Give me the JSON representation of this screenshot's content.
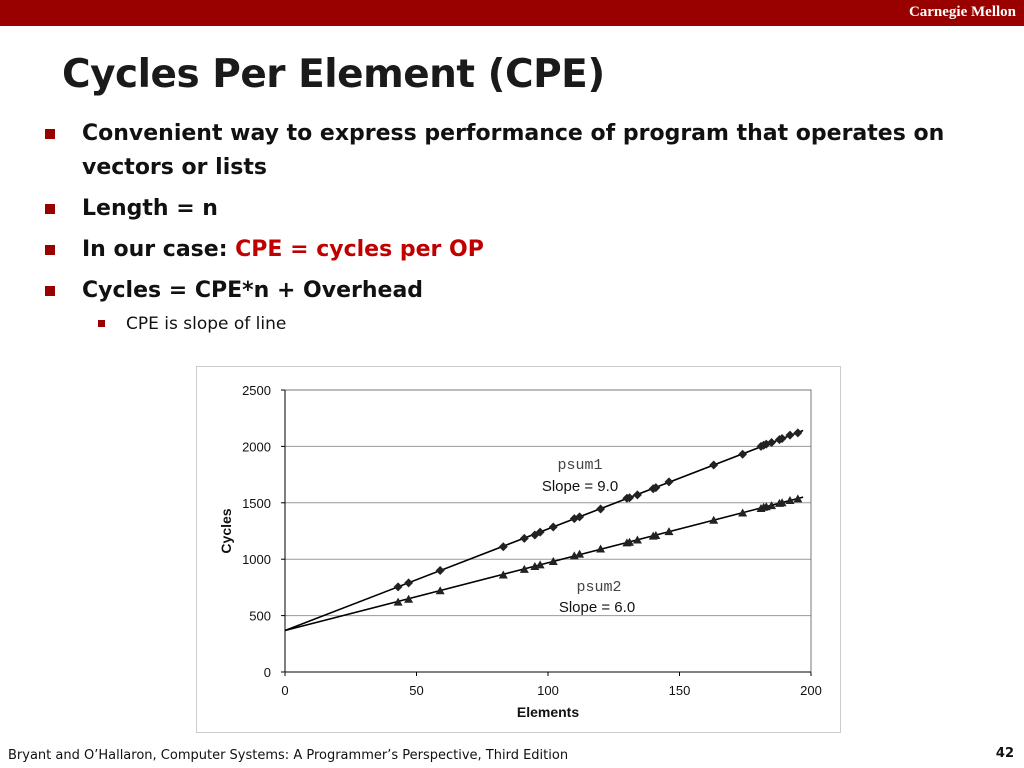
{
  "header": {
    "brand": "Carnegie Mellon"
  },
  "slide": {
    "title": "Cycles Per Element (CPE)",
    "bullets": [
      {
        "text": "Convenient way to express performance of program that operates on"
      },
      {
        "text": "vectors or lists"
      },
      {
        "text": "Length = n"
      },
      {
        "prefix": "In our case: ",
        "highlight": "CPE = cycles per OP"
      },
      {
        "text": "Cycles = CPE*n + Overhead"
      }
    ],
    "sub_bullet": "CPE is slope of line"
  },
  "footer": {
    "citation": "Bryant and O’Hallaron, Computer Systems: A Programmer’s Perspective, Third Edition",
    "page": "42"
  },
  "colors": {
    "accent": "#990000",
    "highlight": "#c00000",
    "series": "#222222"
  },
  "chart_data": {
    "type": "scatter",
    "xlabel": "Elements",
    "ylabel": "Cycles",
    "xlim": [
      0,
      200
    ],
    "ylim": [
      0,
      2500
    ],
    "xticks": [
      0,
      50,
      100,
      150,
      200
    ],
    "yticks": [
      0,
      500,
      1000,
      1500,
      2000,
      2500
    ],
    "grid": "horizontal",
    "series": [
      {
        "name": "psum1",
        "annotation": "Slope = 9.0",
        "marker": "diamond",
        "fit": {
          "slope": 9.0,
          "intercept": 368
        },
        "x": [
          43,
          47,
          59,
          83,
          91,
          95,
          97,
          102,
          110,
          112,
          120,
          130,
          131,
          134,
          140,
          141,
          146,
          163,
          174,
          181,
          182,
          183,
          185,
          188,
          189,
          192,
          195
        ],
        "y": [
          755,
          790,
          900,
          1110,
          1185,
          1215,
          1240,
          1285,
          1360,
          1375,
          1445,
          1540,
          1545,
          1570,
          1625,
          1635,
          1685,
          1835,
          1930,
          2000,
          2010,
          2020,
          2035,
          2060,
          2070,
          2100,
          2120
        ]
      },
      {
        "name": "psum2",
        "annotation": "Slope = 6.0",
        "marker": "triangle",
        "fit": {
          "slope": 6.0,
          "intercept": 368
        },
        "x": [
          43,
          47,
          59,
          83,
          91,
          95,
          97,
          102,
          110,
          112,
          120,
          130,
          131,
          134,
          140,
          141,
          146,
          163,
          174,
          181,
          182,
          183,
          185,
          188,
          189,
          192,
          195
        ],
        "y": [
          620,
          645,
          720,
          860,
          910,
          935,
          950,
          980,
          1030,
          1045,
          1090,
          1145,
          1150,
          1170,
          1205,
          1210,
          1245,
          1345,
          1410,
          1450,
          1460,
          1465,
          1475,
          1495,
          1500,
          1520,
          1535
        ]
      }
    ]
  }
}
